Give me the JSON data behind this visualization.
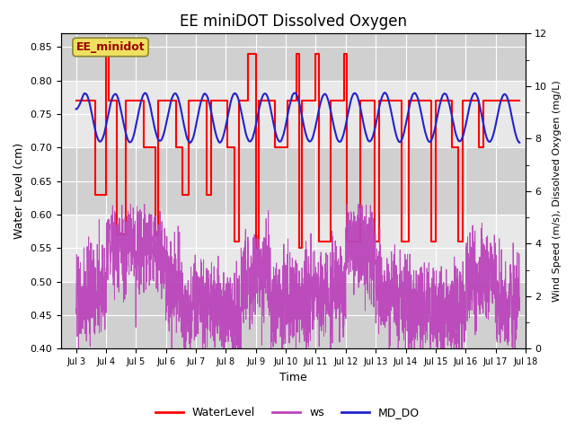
{
  "title": "EE miniDOT Dissolved Oxygen",
  "xlabel": "Time",
  "ylabel_left": "Water Level (cm)",
  "ylabel_right": "Wind Speed (m/s), Dissolved Oxygen (mg/L)",
  "annotation_text": "EE_minidot",
  "xlim": [
    2.5,
    18
  ],
  "ylim_left": [
    0.4,
    0.87
  ],
  "ylim_right": [
    0,
    12
  ],
  "xtick_labels": [
    "Jul 3",
    "Jul 4",
    "Jul 5",
    "Jul 6",
    "Jul 7",
    "Jul 8",
    "Jul 9",
    "Jul 10",
    "Jul 11",
    "Jul 12",
    "Jul 13",
    "Jul 14",
    "Jul 15",
    "Jul 16",
    "Jul 17",
    "Jul 18"
  ],
  "xtick_positions": [
    3,
    4,
    5,
    6,
    7,
    8,
    9,
    10,
    11,
    12,
    13,
    14,
    15,
    16,
    17,
    18
  ],
  "yticks_left": [
    0.4,
    0.45,
    0.5,
    0.55,
    0.6,
    0.65,
    0.7,
    0.75,
    0.8,
    0.85
  ],
  "yticks_right": [
    0,
    2,
    4,
    6,
    8,
    10,
    12
  ],
  "wl_color": "#ff0000",
  "ws_color": "#bb44bb",
  "do_color": "#2222cc",
  "bg_inner": "#e8e8e8",
  "bg_band": "#d8d8d8",
  "legend_labels": [
    "WaterLevel",
    "ws",
    "MD_DO"
  ],
  "legend_colors": [
    "#ff0000",
    "#bb44bb",
    "#2222cc"
  ],
  "water_level_steps": [
    [
      3.0,
      0.77
    ],
    [
      3.65,
      0.63
    ],
    [
      4.0,
      0.84
    ],
    [
      4.1,
      0.77
    ],
    [
      4.35,
      0.57
    ],
    [
      4.65,
      0.77
    ],
    [
      5.25,
      0.7
    ],
    [
      5.65,
      0.57
    ],
    [
      5.75,
      0.77
    ],
    [
      6.35,
      0.7
    ],
    [
      6.55,
      0.63
    ],
    [
      6.75,
      0.77
    ],
    [
      7.35,
      0.63
    ],
    [
      7.5,
      0.77
    ],
    [
      8.05,
      0.7
    ],
    [
      8.3,
      0.56
    ],
    [
      8.45,
      0.77
    ],
    [
      8.75,
      0.84
    ],
    [
      9.0,
      0.55
    ],
    [
      9.1,
      0.77
    ],
    [
      9.65,
      0.7
    ],
    [
      9.95,
      0.7
    ],
    [
      10.05,
      0.77
    ],
    [
      10.35,
      0.84
    ],
    [
      10.45,
      0.55
    ],
    [
      10.55,
      0.77
    ],
    [
      11.0,
      0.84
    ],
    [
      11.1,
      0.56
    ],
    [
      11.4,
      0.56
    ],
    [
      11.5,
      0.77
    ],
    [
      11.95,
      0.84
    ],
    [
      12.05,
      0.56
    ],
    [
      12.4,
      0.56
    ],
    [
      12.5,
      0.77
    ],
    [
      12.95,
      0.56
    ],
    [
      13.1,
      0.77
    ],
    [
      13.85,
      0.56
    ],
    [
      14.1,
      0.77
    ],
    [
      14.85,
      0.56
    ],
    [
      15.0,
      0.77
    ],
    [
      15.55,
      0.7
    ],
    [
      15.75,
      0.56
    ],
    [
      15.9,
      0.77
    ],
    [
      16.45,
      0.7
    ],
    [
      16.6,
      0.77
    ],
    [
      17.8,
      0.77
    ]
  ],
  "grid_color": "#ffffff",
  "title_fontsize": 12
}
